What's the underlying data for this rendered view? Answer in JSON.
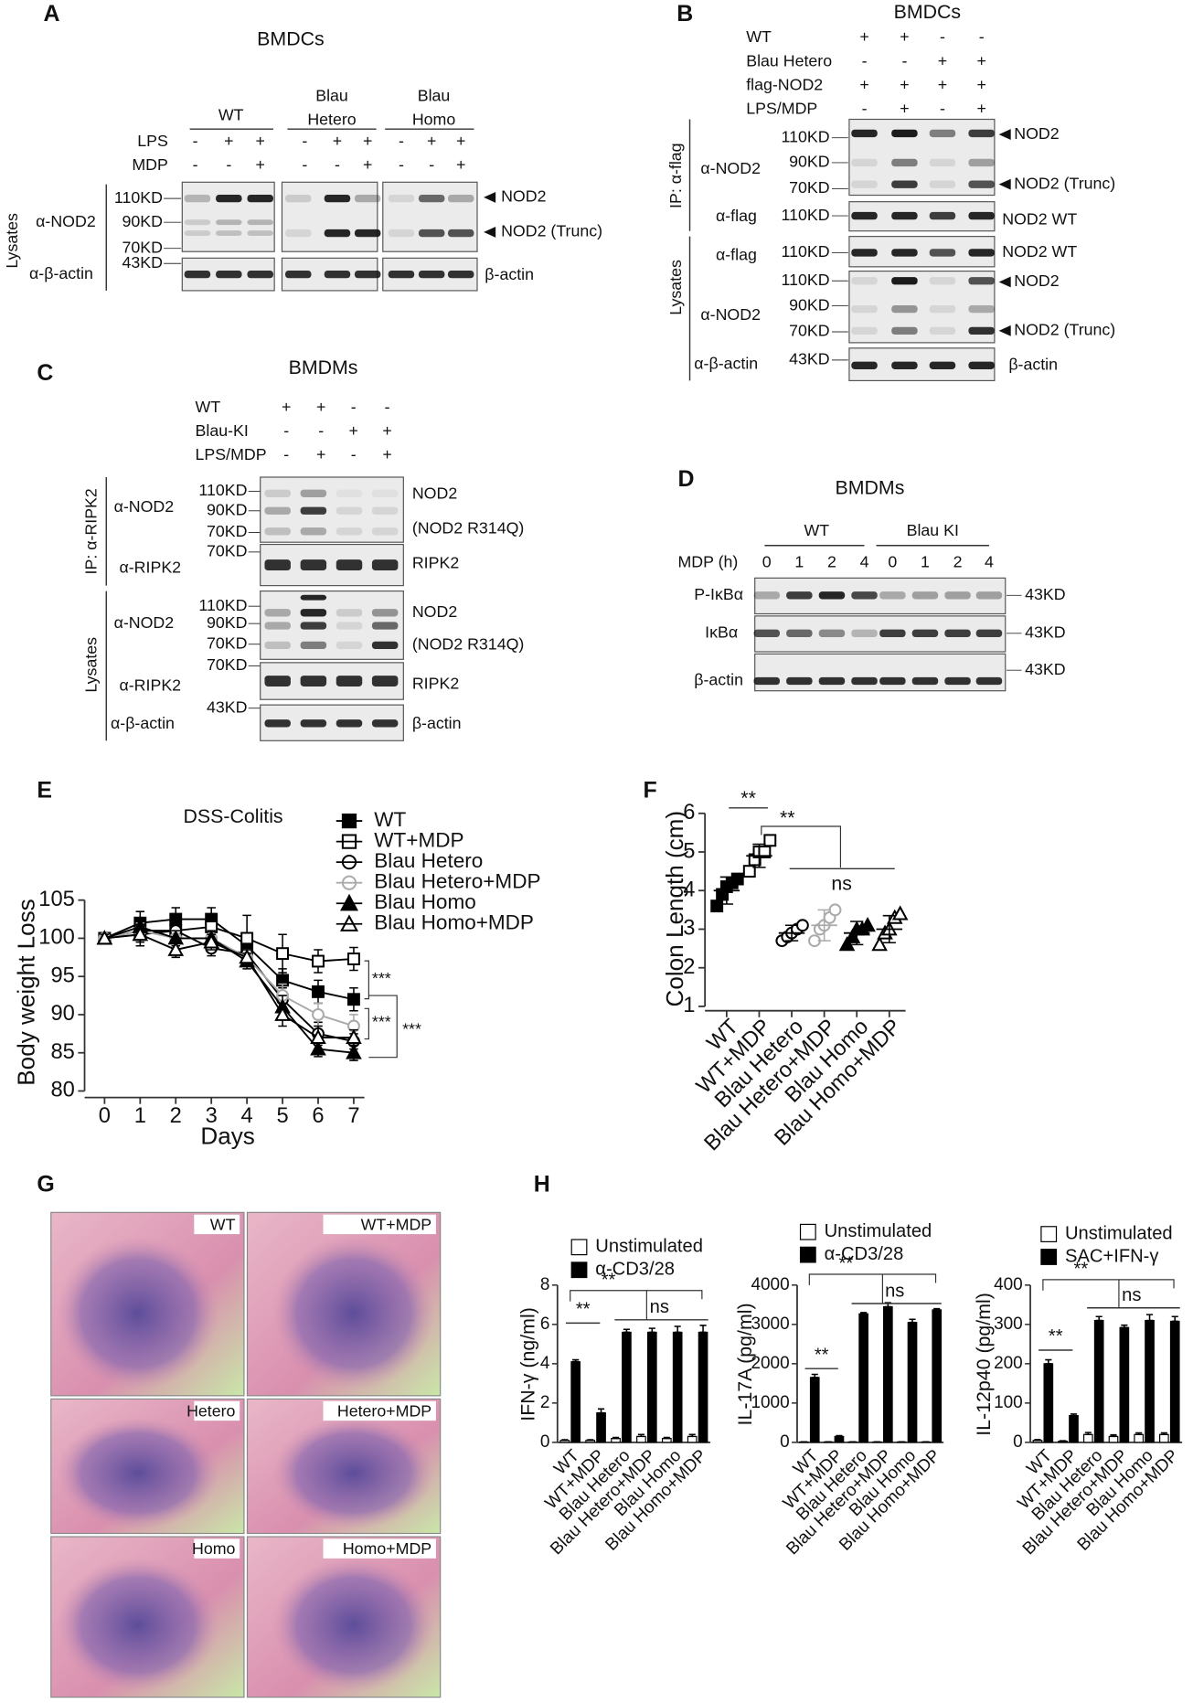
{
  "panel_labels": [
    "A",
    "B",
    "C",
    "D",
    "E",
    "F",
    "G",
    "H"
  ],
  "blot_a": {
    "title": "BMDCs",
    "groups": [
      [
        "WT"
      ],
      [
        "Blau",
        "Hetero"
      ],
      [
        "Blau",
        "Homo"
      ]
    ],
    "treatments": [
      {
        "name": "LPS",
        "signs": [
          "-",
          "+",
          "+",
          "-",
          "+",
          "+",
          "-",
          "+",
          "+"
        ]
      },
      {
        "name": "MDP",
        "signs": [
          "-",
          "-",
          "+",
          "-",
          "-",
          "+",
          "-",
          "-",
          "+"
        ]
      }
    ],
    "left_labels": [
      "Lysates",
      "α-NOD2",
      "α-β-actin"
    ],
    "markers": [
      "110KD",
      "90KD",
      "70KD",
      "43KD"
    ],
    "bands": [
      "NOD2",
      "NOD2 (Trunc)",
      "β-actin"
    ]
  },
  "blot_b": {
    "title": "BMDCs",
    "treatments": [
      {
        "name": "WT",
        "signs": [
          "+",
          "+",
          "-",
          "-"
        ]
      },
      {
        "name": "Blau Hetero",
        "signs": [
          "-",
          "-",
          "+",
          "+"
        ]
      },
      {
        "name": "flag-NOD2",
        "signs": [
          "+",
          "+",
          "+",
          "+"
        ]
      },
      {
        "name": "LPS/MDP",
        "signs": [
          "-",
          "+",
          "-",
          "+"
        ]
      }
    ],
    "left_labels": [
      "IP: α-flag",
      "α-NOD2",
      "α-flag",
      "Lysates",
      "α-flag",
      "α-NOD2",
      "α-β-actin"
    ],
    "markers": [
      "110KD",
      "90KD",
      "70KD",
      "110KD",
      "110KD",
      "110KD",
      "90KD",
      "70KD",
      "43KD"
    ],
    "bands": [
      "NOD2",
      "NOD2 (Trunc)",
      "NOD2 WT",
      "NOD2 WT",
      "NOD2",
      "NOD2 (Trunc)",
      "β-actin"
    ]
  },
  "blot_c": {
    "title": "BMDMs",
    "treatments": [
      {
        "name": "WT",
        "signs": [
          "+",
          "+",
          "-",
          "-"
        ]
      },
      {
        "name": "Blau-KI",
        "signs": [
          "-",
          "-",
          "+",
          "+"
        ]
      },
      {
        "name": "LPS/MDP",
        "signs": [
          "-",
          "+",
          "-",
          "+"
        ]
      }
    ],
    "left_labels": [
      "IP: α-RIPK2",
      "α-NOD2",
      "α-RIPK2",
      "Lysates",
      "α-NOD2",
      "α-RIPK2",
      "α-β-actin"
    ],
    "markers": [
      "110KD",
      "90KD",
      "70KD",
      "70KD",
      "110KD",
      "90KD",
      "70KD",
      "70KD",
      "43KD"
    ],
    "bands": [
      "NOD2",
      "(NOD2 R314Q)",
      "RIPK2",
      "NOD2",
      "(NOD2 R314Q)",
      "RIPK2",
      "β-actin"
    ]
  },
  "blot_d": {
    "title": "BMDMs",
    "groups": [
      "WT",
      "Blau KI"
    ],
    "time_label": "MDP (h)",
    "times": [
      0,
      1,
      2,
      4,
      0,
      1,
      2,
      4
    ],
    "left_labels": [
      "P-IκBα",
      "IκBα",
      "β-actin"
    ],
    "markers": [
      "43KD",
      "43KD",
      "43KD"
    ]
  },
  "histology": {
    "labels": [
      "WT",
      "WT+MDP",
      "Hetero",
      "Hetero+MDP",
      "Homo",
      "Homo+MDP"
    ]
  },
  "chart_data": [
    {
      "type": "line",
      "title": "DSS-Colitis",
      "x_label": "Days",
      "y_label": "Body weight Loss",
      "x": [
        0,
        1,
        2,
        3,
        4,
        5,
        6,
        7
      ],
      "xlim": [
        -0.5,
        7.3
      ],
      "xticks": [
        0,
        1,
        2,
        3,
        4,
        5,
        6,
        7
      ],
      "ylim": [
        80,
        105
      ],
      "yticks": [
        80,
        85,
        90,
        95,
        100,
        105
      ],
      "series": [
        {
          "name": "WT",
          "color": "#000000",
          "marker": "square",
          "filled": true,
          "values": [
            100,
            102,
            102.5,
            102.5,
            99,
            94.5,
            93,
            92
          ],
          "errors": [
            0.5,
            1.5,
            1.5,
            1.5,
            1.5,
            1.5,
            1.5,
            1.5
          ]
        },
        {
          "name": "WT+MDP",
          "color": "#000000",
          "marker": "square",
          "filled": false,
          "values": [
            100,
            100.5,
            101,
            101.5,
            100,
            98,
            97,
            97.3
          ],
          "errors": [
            0.5,
            1.5,
            1,
            1.5,
            3,
            2.5,
            1.5,
            1.5
          ]
        },
        {
          "name": "Blau Hetero",
          "color": "#000000",
          "marker": "circle",
          "filled": false,
          "values": [
            100,
            101,
            101,
            98.7,
            98,
            92,
            87.5,
            86.5
          ],
          "errors": [
            0.5,
            1,
            1,
            1,
            1,
            1.5,
            1.5,
            1
          ]
        },
        {
          "name": "Blau Hetero+MDP",
          "color": "#aaaaaa",
          "marker": "circle",
          "filled": false,
          "values": [
            100,
            101,
            100,
            100,
            97.5,
            92.5,
            90,
            88.5
          ],
          "errors": [
            0.5,
            1,
            1,
            1,
            1,
            1.5,
            1.5,
            1.5
          ]
        },
        {
          "name": "Blau Homo",
          "color": "#000000",
          "marker": "triangle",
          "filled": true,
          "values": [
            100,
            101.5,
            100,
            100,
            97,
            91,
            85.5,
            85
          ],
          "errors": [
            0.5,
            1,
            1,
            1,
            1,
            1.5,
            1,
            1
          ]
        },
        {
          "name": "Blau Homo+MDP",
          "color": "#000000",
          "marker": "triangle",
          "filled": false,
          "values": [
            100,
            100.5,
            98.5,
            99.5,
            97.5,
            90,
            87,
            87
          ],
          "errors": [
            0.5,
            1,
            1,
            1,
            1,
            1.5,
            1.5,
            1
          ]
        }
      ],
      "annotations": [
        "***",
        "***",
        "***"
      ]
    },
    {
      "type": "dot",
      "y_label": "Colon Length (cm)",
      "categories": [
        "WT",
        "WT+MDP",
        "Blau Hetero",
        "Blau Hetero+MDP",
        "Blau Homo",
        "Blau Homo+MDP"
      ],
      "points": [
        [
          3.6,
          3.9,
          4.1,
          4.2,
          4.3
        ],
        [
          4.5,
          4.8,
          5.0,
          5.0,
          5.3
        ],
        [
          2.7,
          2.8,
          2.9,
          3.0,
          3.1
        ],
        [
          2.7,
          3.0,
          3.1,
          3.3,
          3.5
        ],
        [
          2.6,
          2.8,
          3.0,
          3.0,
          3.1
        ],
        [
          2.6,
          2.9,
          3.0,
          3.3,
          3.4
        ]
      ],
      "means": [
        4.0,
        4.9,
        2.9,
        3.1,
        2.9,
        3.0
      ],
      "errors": [
        0.35,
        0.3,
        0.2,
        0.4,
        0.3,
        0.35
      ],
      "markers": [
        "square",
        "square",
        "circle",
        "circle",
        "triangle",
        "triangle"
      ],
      "filled": [
        true,
        false,
        false,
        false,
        true,
        false
      ],
      "colors": [
        "#000000",
        "#000000",
        "#000000",
        "#aaaaaa",
        "#000000",
        "#000000"
      ],
      "ylim": [
        1,
        6
      ],
      "yticks": [
        1,
        2,
        3,
        4,
        5,
        6
      ],
      "annotations": [
        "**",
        "**",
        "ns"
      ]
    },
    {
      "type": "bar",
      "y_label": "IFN-γ (ng/ml)",
      "categories": [
        "WT",
        "WT+MDP",
        "Blau Hetero",
        "Blau Hetero+MDP",
        "Blau Homo",
        "Blau Homo+MDP"
      ],
      "ylim": [
        0,
        8
      ],
      "yticks": [
        0,
        2,
        4,
        6,
        8
      ],
      "series": [
        {
          "name": "Unstimulated",
          "color": "#ffffff",
          "values": [
            0.1,
            0.1,
            0.2,
            0.3,
            0.2,
            0.3
          ],
          "errors": [
            0.03,
            0.03,
            0.05,
            0.1,
            0.05,
            0.1
          ]
        },
        {
          "name": "α-CD3/28",
          "color": "#000000",
          "values": [
            4.1,
            1.5,
            5.6,
            5.6,
            5.6,
            5.6
          ],
          "errors": [
            0.1,
            0.2,
            0.15,
            0.2,
            0.3,
            0.35
          ]
        }
      ],
      "annotations": [
        "**",
        "**",
        "ns"
      ]
    },
    {
      "type": "bar",
      "y_label": "IL-17A (pg/ml)",
      "categories": [
        "WT",
        "WT+MDP",
        "Blau Hetero",
        "Blau Hetero+MDP",
        "Blau Homo",
        "Blau Homo+MDP"
      ],
      "ylim": [
        0,
        4000
      ],
      "yticks": [
        0,
        1000,
        2000,
        3000,
        4000
      ],
      "series": [
        {
          "name": "Unstimulated",
          "color": "#ffffff",
          "values": [
            10,
            10,
            10,
            10,
            10,
            10
          ],
          "errors": [
            5,
            5,
            5,
            5,
            5,
            5
          ]
        },
        {
          "name": "α-CD3/28",
          "color": "#000000",
          "values": [
            1650,
            150,
            3270,
            3450,
            3050,
            3370
          ],
          "errors": [
            80,
            20,
            30,
            100,
            80,
            30
          ]
        }
      ],
      "annotations": [
        "**",
        "**",
        "ns"
      ]
    },
    {
      "type": "bar",
      "y_label": "IL-12p40 (pg/ml)",
      "categories": [
        "WT",
        "WT+MDP",
        "Blau Hetero",
        "Blau Hetero+MDP",
        "Blau Homo",
        "Blau Homo+MDP"
      ],
      "ylim": [
        0,
        400
      ],
      "yticks": [
        0,
        100,
        200,
        300,
        400
      ],
      "series": [
        {
          "name": "Unstimulated",
          "color": "#ffffff",
          "values": [
            5,
            3,
            20,
            15,
            20,
            20
          ],
          "errors": [
            2,
            1,
            5,
            4,
            4,
            4
          ]
        },
        {
          "name": "SAC+IFN-γ",
          "color": "#000000",
          "values": [
            200,
            68,
            310,
            292,
            310,
            308
          ],
          "errors": [
            10,
            4,
            10,
            6,
            15,
            12
          ]
        }
      ],
      "annotations": [
        "**",
        "**",
        "ns"
      ]
    }
  ]
}
